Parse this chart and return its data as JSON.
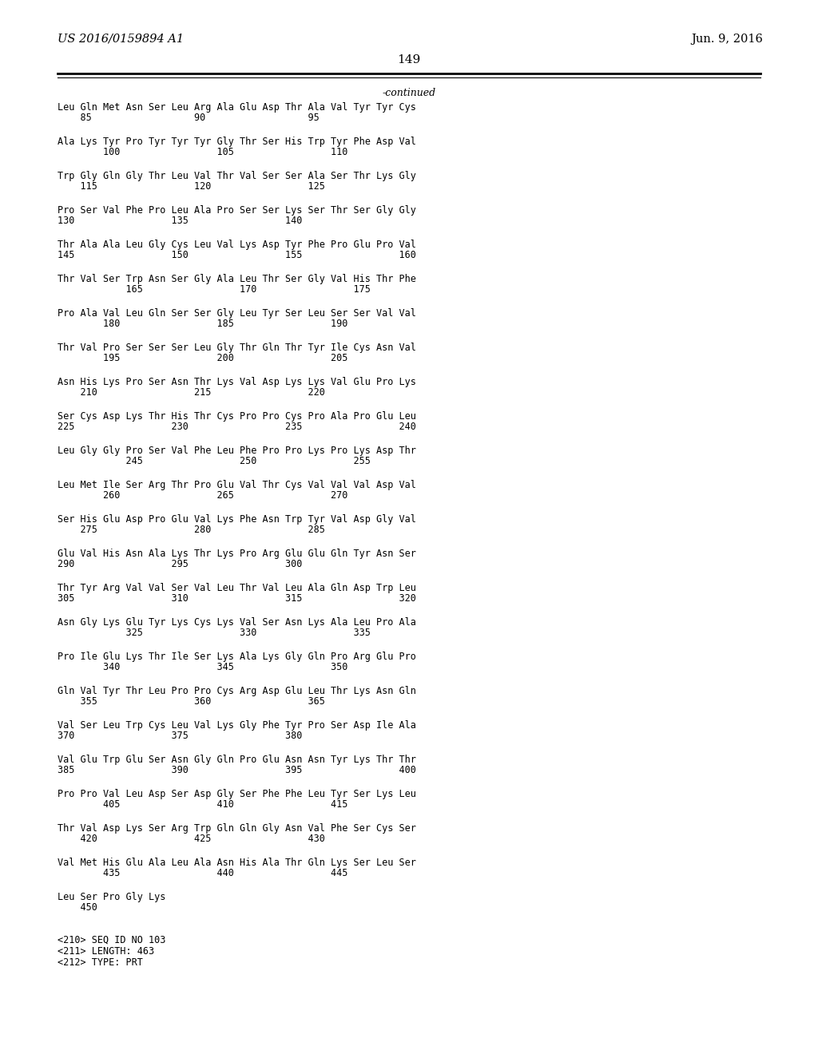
{
  "header_left": "US 2016/0159894 A1",
  "header_right": "Jun. 9, 2016",
  "page_number": "149",
  "continued_label": "-continued",
  "background_color": "#ffffff",
  "text_color": "#000000",
  "sequence_blocks": [
    {
      "seq": "Leu Gln Met Asn Ser Leu Arg Ala Glu Asp Thr Ala Val Tyr Tyr Cys",
      "num": "    85                  90                  95"
    },
    {
      "seq": "Ala Lys Tyr Pro Tyr Tyr Tyr Gly Thr Ser His Trp Tyr Phe Asp Val",
      "num": "        100                 105                 110"
    },
    {
      "seq": "Trp Gly Gln Gly Thr Leu Val Thr Val Ser Ser Ala Ser Thr Lys Gly",
      "num": "    115                 120                 125"
    },
    {
      "seq": "Pro Ser Val Phe Pro Leu Ala Pro Ser Ser Lys Ser Thr Ser Gly Gly",
      "num": "130                 135                 140"
    },
    {
      "seq": "Thr Ala Ala Leu Gly Cys Leu Val Lys Asp Tyr Phe Pro Glu Pro Val",
      "num": "145                 150                 155                 160"
    },
    {
      "seq": "Thr Val Ser Trp Asn Ser Gly Ala Leu Thr Ser Gly Val His Thr Phe",
      "num": "            165                 170                 175"
    },
    {
      "seq": "Pro Ala Val Leu Gln Ser Ser Gly Leu Tyr Ser Leu Ser Ser Val Val",
      "num": "        180                 185                 190"
    },
    {
      "seq": "Thr Val Pro Ser Ser Ser Leu Gly Thr Gln Thr Tyr Ile Cys Asn Val",
      "num": "        195                 200                 205"
    },
    {
      "seq": "Asn His Lys Pro Ser Asn Thr Lys Val Asp Lys Lys Val Glu Pro Lys",
      "num": "    210                 215                 220"
    },
    {
      "seq": "Ser Cys Asp Lys Thr His Thr Cys Pro Pro Cys Pro Ala Pro Glu Leu",
      "num": "225                 230                 235                 240"
    },
    {
      "seq": "Leu Gly Gly Pro Ser Val Phe Leu Phe Pro Pro Lys Pro Lys Asp Thr",
      "num": "            245                 250                 255"
    },
    {
      "seq": "Leu Met Ile Ser Arg Thr Pro Glu Val Thr Cys Val Val Val Asp Val",
      "num": "        260                 265                 270"
    },
    {
      "seq": "Ser His Glu Asp Pro Glu Val Lys Phe Asn Trp Tyr Val Asp Gly Val",
      "num": "    275                 280                 285"
    },
    {
      "seq": "Glu Val His Asn Ala Lys Thr Lys Pro Arg Glu Glu Gln Tyr Asn Ser",
      "num": "290                 295                 300"
    },
    {
      "seq": "Thr Tyr Arg Val Val Ser Val Leu Thr Val Leu Ala Gln Asp Trp Leu",
      "num": "305                 310                 315                 320"
    },
    {
      "seq": "Asn Gly Lys Glu Tyr Lys Cys Lys Val Ser Asn Lys Ala Leu Pro Ala",
      "num": "            325                 330                 335"
    },
    {
      "seq": "Pro Ile Glu Lys Thr Ile Ser Lys Ala Lys Gly Gln Pro Arg Glu Pro",
      "num": "        340                 345                 350"
    },
    {
      "seq": "Gln Val Tyr Thr Leu Pro Pro Cys Arg Asp Glu Leu Thr Lys Asn Gln",
      "num": "    355                 360                 365"
    },
    {
      "seq": "Val Ser Leu Trp Cys Leu Val Lys Gly Phe Tyr Pro Ser Asp Ile Ala",
      "num": "370                 375                 380"
    },
    {
      "seq": "Val Glu Trp Glu Ser Asn Gly Gln Pro Glu Asn Asn Tyr Lys Thr Thr",
      "num": "385                 390                 395                 400"
    },
    {
      "seq": "Pro Pro Val Leu Asp Ser Asp Gly Ser Phe Phe Leu Tyr Ser Lys Leu",
      "num": "        405                 410                 415"
    },
    {
      "seq": "Thr Val Asp Lys Ser Arg Trp Gln Gln Gly Asn Val Phe Ser Cys Ser",
      "num": "    420                 425                 430"
    },
    {
      "seq": "Val Met His Glu Ala Leu Ala Asn His Ala Thr Gln Lys Ser Leu Ser",
      "num": "        435                 440                 445"
    },
    {
      "seq": "Leu Ser Pro Gly Lys",
      "num": "    450"
    }
  ],
  "footer_lines": [
    "<210> SEQ ID NO 103",
    "<211> LENGTH: 463",
    "<212> TYPE: PRT"
  ]
}
